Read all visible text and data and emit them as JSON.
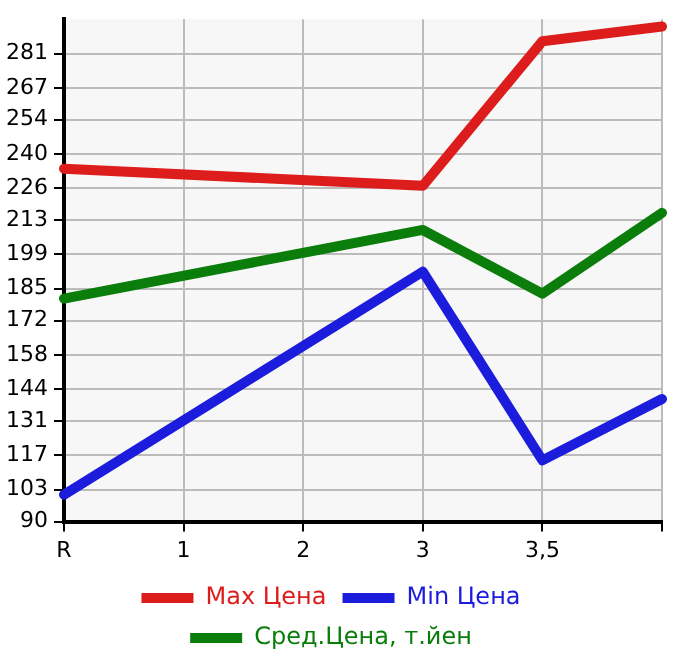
{
  "chart_data": {
    "type": "line",
    "categories": [
      "R",
      "1",
      "2",
      "3",
      "3,5",
      null
    ],
    "series": [
      {
        "name": "Max Цена",
        "color": "#dd1c1c",
        "values": [
          234,
          null,
          null,
          227,
          286,
          292
        ]
      },
      {
        "name": "Min Цена",
        "color": "#1c1cdd",
        "values": [
          101,
          null,
          null,
          192,
          115,
          140
        ]
      },
      {
        "name": "Сред.Цена, т.йен",
        "color": "#0a7d0a",
        "values": [
          181,
          null,
          null,
          209,
          183,
          216
        ]
      }
    ],
    "ylim": [
      90,
      295
    ],
    "yticks": [
      90,
      103,
      117,
      131,
      144,
      158,
      172,
      185,
      199,
      213,
      226,
      240,
      254,
      267,
      281
    ],
    "grid": true,
    "legend": "bottom",
    "marker": "none",
    "line_style": "solid"
  }
}
